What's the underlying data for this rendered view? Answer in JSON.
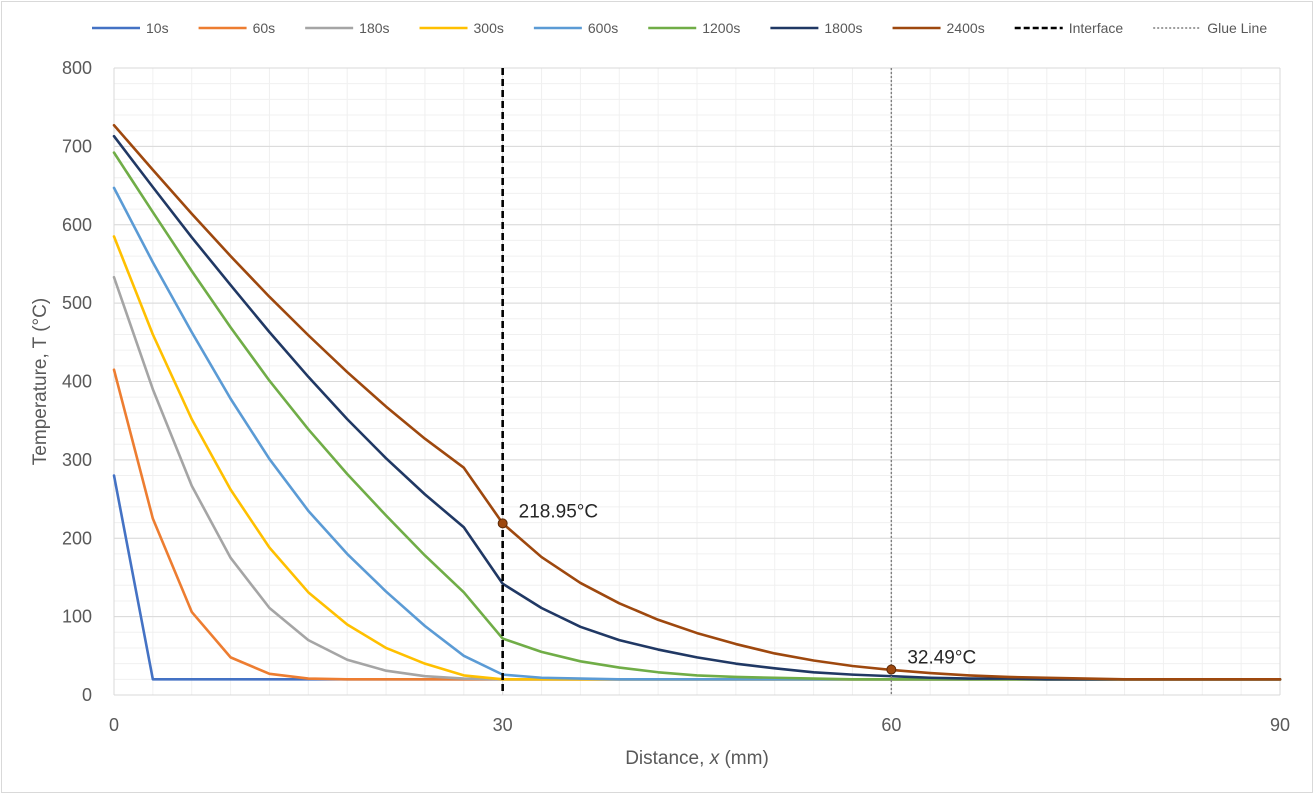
{
  "chart_data": {
    "type": "line",
    "title": "",
    "xlabel": "Distance, x (mm)",
    "xlabel_parts": [
      "Distance, ",
      "x",
      " (mm)"
    ],
    "ylabel": "Temperature, T (°C)",
    "xlim": [
      0,
      90
    ],
    "ylim": [
      0,
      800
    ],
    "xticks": [
      0,
      30,
      60,
      90
    ],
    "yticks": [
      0,
      100,
      200,
      300,
      400,
      500,
      600,
      700,
      800
    ],
    "grid": true,
    "legend_position": "top",
    "x": [
      0,
      3,
      6,
      9,
      12,
      15,
      18,
      21,
      24,
      27,
      30,
      33,
      36,
      39,
      42,
      45,
      48,
      51,
      54,
      57,
      60,
      63,
      66,
      69,
      72,
      75,
      78,
      81,
      84,
      87,
      90
    ],
    "series": [
      {
        "name": "10s",
        "color": "#4472C4",
        "values": [
          280,
          20,
          20,
          20,
          20,
          20,
          20,
          20,
          20,
          20,
          20,
          20,
          20,
          20,
          20,
          20,
          20,
          20,
          20,
          20,
          20,
          20,
          20,
          20,
          20,
          20,
          20,
          20,
          20,
          20,
          20
        ]
      },
      {
        "name": "60s",
        "color": "#ED7D31",
        "values": [
          415,
          225,
          106,
          48,
          27,
          21,
          20,
          20,
          20,
          20,
          20,
          20,
          20,
          20,
          20,
          20,
          20,
          20,
          20,
          20,
          20,
          20,
          20,
          20,
          20,
          20,
          20,
          20,
          20,
          20,
          20
        ]
      },
      {
        "name": "180s",
        "color": "#A5A5A5",
        "values": [
          533,
          390,
          267,
          175,
          111,
          70,
          45,
          31,
          24,
          21,
          20,
          20,
          20,
          20,
          20,
          20,
          20,
          20,
          20,
          20,
          20,
          20,
          20,
          20,
          20,
          20,
          20,
          20,
          20,
          20,
          20
        ]
      },
      {
        "name": "300s",
        "color": "#FFC000",
        "values": [
          585,
          460,
          352,
          262,
          188,
          131,
          90,
          60,
          40,
          25,
          20,
          20,
          20,
          20,
          20,
          20,
          20,
          20,
          20,
          20,
          20,
          20,
          20,
          20,
          20,
          20,
          20,
          20,
          20,
          20,
          20
        ]
      },
      {
        "name": "600s",
        "color": "#5B9BD5",
        "values": [
          647,
          552,
          463,
          378,
          301,
          235,
          180,
          132,
          88,
          50,
          26,
          22,
          21,
          20,
          20,
          20,
          20,
          20,
          20,
          20,
          20,
          20,
          20,
          20,
          20,
          20,
          20,
          20,
          20,
          20,
          20
        ]
      },
      {
        "name": "1200s",
        "color": "#70AD47",
        "values": [
          692,
          616,
          541,
          469,
          401,
          339,
          282,
          229,
          178,
          131,
          72,
          55,
          43,
          35,
          29,
          25,
          23,
          22,
          21,
          20,
          20,
          20,
          20,
          20,
          20,
          20,
          20,
          20,
          20,
          20,
          20
        ]
      },
      {
        "name": "1800s",
        "color": "#203864",
        "values": [
          713,
          648,
          584,
          523,
          463,
          406,
          352,
          302,
          256,
          214,
          142,
          111,
          87,
          70,
          58,
          48,
          40,
          34,
          29,
          26,
          24,
          22,
          21,
          21,
          20,
          20,
          20,
          20,
          20,
          20,
          20
        ]
      },
      {
        "name": "2400s",
        "color": "#9E480E",
        "values": [
          727,
          670,
          614,
          560,
          508,
          459,
          412,
          368,
          327,
          290,
          219,
          176,
          143,
          117,
          96,
          79,
          65,
          53,
          44,
          37,
          32,
          28,
          25,
          23,
          22,
          21,
          20,
          20,
          20,
          20,
          20
        ]
      }
    ],
    "reference_lines": [
      {
        "name": "Interface",
        "x": 30,
        "style": "dashed",
        "color": "#000000"
      },
      {
        "name": "Glue Line",
        "x": 60,
        "style": "dotted",
        "color": "#7F7F7F"
      }
    ],
    "annotations": [
      {
        "text": "218.95°C",
        "x": 30,
        "y": 218.95,
        "color": "#9E480E"
      },
      {
        "text": "32.49°C",
        "x": 60,
        "y": 32.49,
        "color": "#9E480E"
      }
    ]
  }
}
